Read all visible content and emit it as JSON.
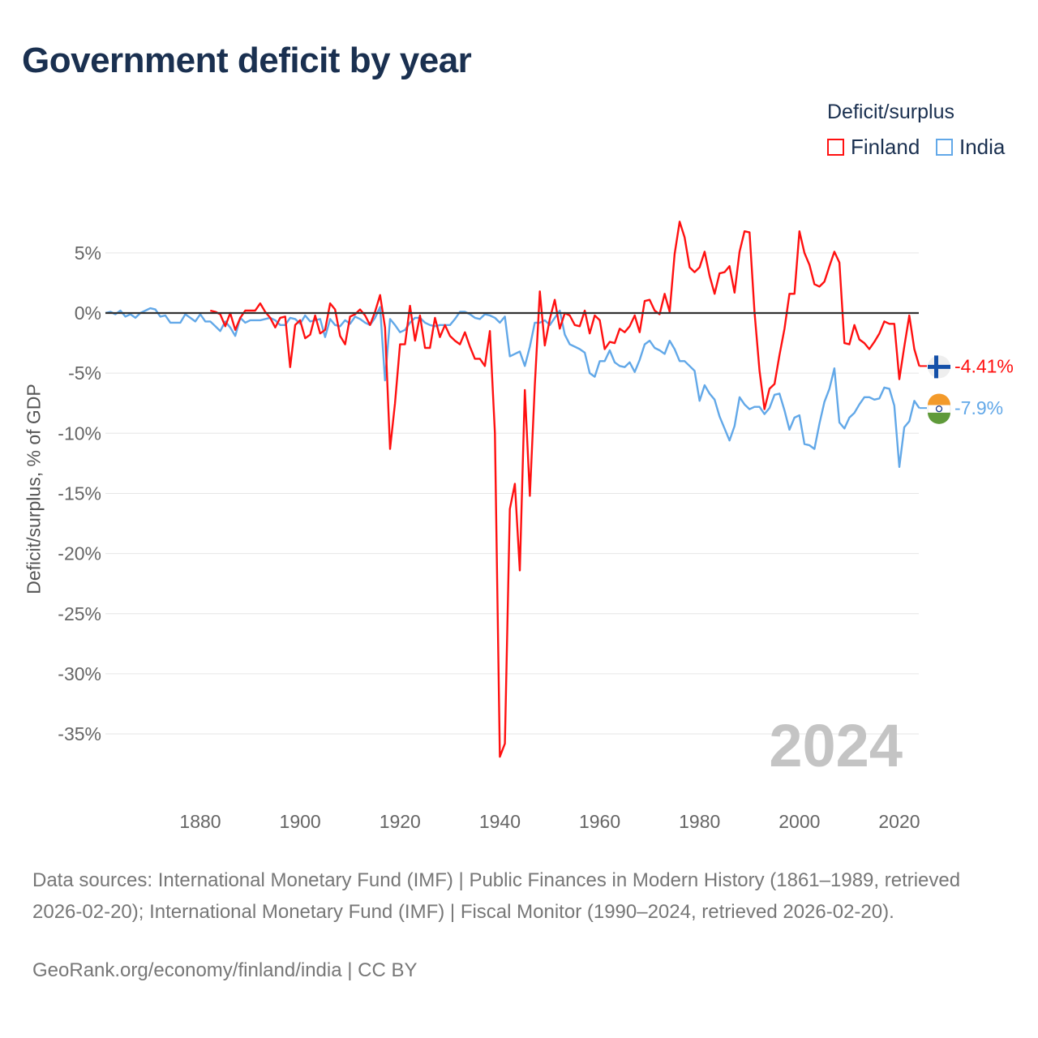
{
  "title": "Government deficit by year",
  "legend": {
    "title": "Deficit/surplus",
    "items": [
      "Finland",
      "India"
    ]
  },
  "colors": {
    "Finland": "#ff1010",
    "India": "#62a8e8",
    "zero_line": "#333333",
    "grid": "#e6e6e6"
  },
  "chart_data": {
    "type": "line",
    "title": "Government deficit by year",
    "xlabel": "",
    "ylabel": "Deficit/surplus, % of GDP",
    "xlim": [
      1861,
      2024
    ],
    "ylim": [
      -38,
      8
    ],
    "grid": true,
    "legend_position": "top-right",
    "year_watermark": "2024",
    "yticks": [
      5,
      0,
      -5,
      -10,
      -15,
      -20,
      -25,
      -30,
      -35
    ],
    "ytick_labels": [
      "5%",
      "0%",
      "-5%",
      "-10%",
      "-15%",
      "-20%",
      "-25%",
      "-30%",
      "-35%"
    ],
    "xticks": [
      1880,
      1900,
      1920,
      1940,
      1960,
      1980,
      2000,
      2020
    ],
    "xtick_labels": [
      "1880",
      "1900",
      "1920",
      "1940",
      "1960",
      "1980",
      "2000",
      "2020"
    ],
    "series": [
      {
        "name": "Finland",
        "start_year": 1882,
        "end_label": "-4.41%",
        "values": [
          0.2,
          0.1,
          -0.1,
          -1.1,
          0.0,
          -1.4,
          -0.4,
          0.2,
          0.2,
          0.2,
          0.8,
          0.1,
          -0.4,
          -1.2,
          -0.4,
          -0.3,
          -4.5,
          -1.0,
          -0.6,
          -2.1,
          -1.8,
          -0.2,
          -1.7,
          -1.4,
          0.8,
          0.3,
          -1.9,
          -2.6,
          -0.3,
          -0.1,
          0.3,
          -0.2,
          -1.0,
          0.1,
          1.5,
          -1.2,
          -11.3,
          -7.5,
          -2.6,
          -2.6,
          0.6,
          -2.3,
          -0.2,
          -2.9,
          -2.9,
          -0.4,
          -2.0,
          -1.0,
          -1.9,
          -2.3,
          -2.6,
          -1.6,
          -2.8,
          -3.8,
          -3.8,
          -4.4,
          -1.5,
          -10.0,
          -36.9,
          -35.8,
          -16.3,
          -14.2,
          -21.4,
          -6.4,
          -15.2,
          -6.0,
          1.8,
          -2.7,
          -0.5,
          1.1,
          -1.3,
          0.0,
          -0.2,
          -1.0,
          -1.1,
          0.2,
          -1.7,
          -0.2,
          -0.6,
          -3.0,
          -2.4,
          -2.5,
          -1.3,
          -1.6,
          -1.1,
          -0.2,
          -1.6,
          1.0,
          1.1,
          0.2,
          -0.1,
          1.6,
          0.1,
          4.9,
          7.6,
          6.3,
          3.8,
          3.4,
          3.8,
          5.1,
          3.1,
          1.6,
          3.3,
          3.4,
          3.9,
          1.7,
          5.1,
          6.8,
          6.7,
          0.1,
          -4.8,
          -8.0,
          -6.3,
          -5.9,
          -3.5,
          -1.3,
          1.6,
          1.6,
          6.8,
          5.0,
          4.0,
          2.4,
          2.2,
          2.6,
          3.9,
          5.1,
          4.2,
          -2.5,
          -2.6,
          -1.0,
          -2.2,
          -2.5,
          -3.0,
          -2.4,
          -1.7,
          -0.7,
          -0.9,
          -0.9,
          -5.5,
          -2.8,
          -0.2,
          -3.0,
          -4.41
        ]
      },
      {
        "name": "India",
        "start_year": 1861,
        "end_label": "-7.9%",
        "values": [
          0,
          0.1,
          -0.1,
          0.2,
          -0.3,
          -0.1,
          -0.4,
          0,
          0.2,
          0.4,
          0.3,
          -0.3,
          -0.2,
          -0.8,
          -0.8,
          -0.8,
          -0.1,
          -0.4,
          -0.7,
          -0.1,
          -0.7,
          -0.7,
          -1.1,
          -1.5,
          -0.7,
          -1.2,
          -1.9,
          -0.4,
          -0.8,
          -0.6,
          -0.6,
          -0.6,
          -0.5,
          -0.4,
          -0.6,
          -1.0,
          -1.0,
          -0.4,
          -0.5,
          -0.9,
          -0.2,
          -0.7,
          -0.6,
          -0.5,
          -2.0,
          -0.5,
          -1.0,
          -1.1,
          -0.6,
          -0.9,
          -0.3,
          -0.5,
          -0.8,
          -1.0,
          -0.4,
          0.5,
          -5.6,
          -0.5,
          -1.0,
          -1.6,
          -1.4,
          -0.8,
          -0.4,
          -0.4,
          -0.8,
          -1.0,
          -1.1,
          -1.0,
          -1.0,
          -1.0,
          -0.5,
          0.1,
          0.1,
          -0.1,
          -0.4,
          -0.5,
          -0.1,
          -0.2,
          -0.4,
          -0.8,
          -0.3,
          -3.6,
          -3.4,
          -3.2,
          -4.4,
          -2.8,
          -0.8,
          -0.8,
          -0.6,
          -1.0,
          -0.4,
          0.2,
          -1.8,
          -2.6,
          -2.8,
          -3.0,
          -3.3,
          -5.0,
          -5.3,
          -4.0,
          -4.0,
          -3.1,
          -4.1,
          -4.4,
          -4.5,
          -4.1,
          -4.9,
          -3.9,
          -2.6,
          -2.3,
          -2.9,
          -3.1,
          -3.4,
          -2.3,
          -3.0,
          -4.0,
          -4.0,
          -4.4,
          -4.8,
          -7.3,
          -6.0,
          -6.7,
          -7.2,
          -8.6,
          -9.6,
          -10.6,
          -9.4,
          -7.0,
          -7.6,
          -8.0,
          -7.8,
          -7.8,
          -8.4,
          -7.9,
          -6.8,
          -6.7,
          -8.1,
          -9.7,
          -8.7,
          -8.5,
          -10.9,
          -11.0,
          -11.3,
          -9.2,
          -7.4,
          -6.3,
          -4.6,
          -9.1,
          -9.6,
          -8.7,
          -8.3,
          -7.6,
          -7.0,
          -7.0,
          -7.2,
          -7.1,
          -6.2,
          -6.3,
          -7.7,
          -12.8,
          -9.5,
          -9.0,
          -7.3,
          -7.9
        ]
      }
    ]
  },
  "footer": {
    "sources": "Data sources: International Monetary Fund (IMF) | Public Finances in Modern History (1861–1989, retrieved 2026-02-20); International Monetary Fund (IMF) | Fiscal Monitor (1990–2024, retrieved 2026-02-20).",
    "credit": "GeoRank.org/economy/finland/india | CC BY"
  }
}
